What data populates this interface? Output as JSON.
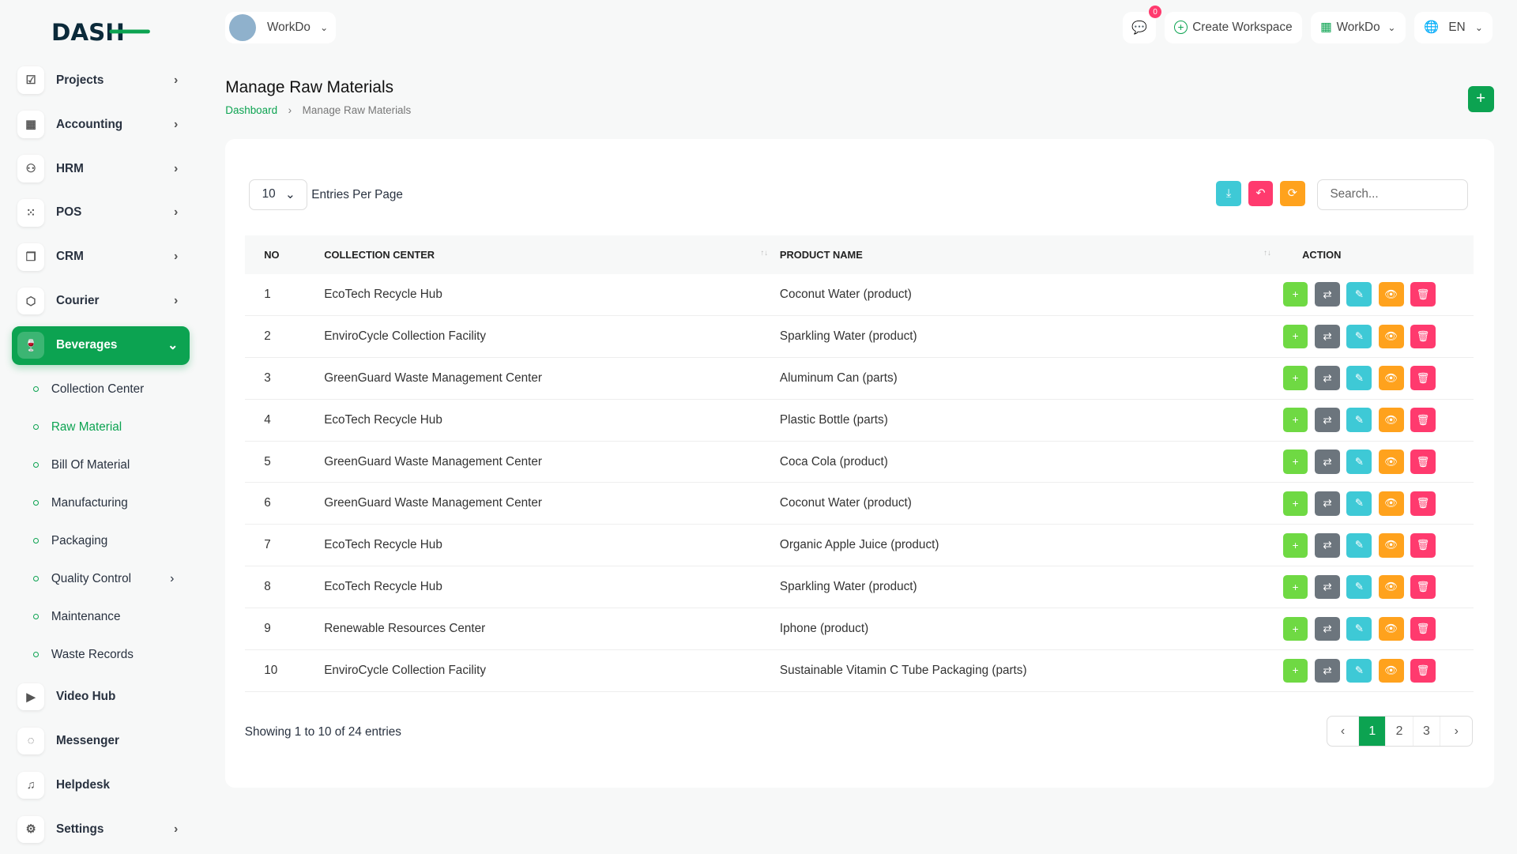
{
  "brand": {
    "logo_text": "DASH",
    "accent": "#0ca351"
  },
  "header": {
    "workspace": "WorkDo",
    "notifications": "0",
    "create_workspace": "Create Workspace",
    "workspace_menu": "WorkDo",
    "language": "EN"
  },
  "sidebar": {
    "items": [
      {
        "label": "Projects",
        "icon": "check-square-icon",
        "chev": true
      },
      {
        "label": "Accounting",
        "icon": "grid-icon",
        "chev": true
      },
      {
        "label": "HRM",
        "icon": "people-icon",
        "chev": true
      },
      {
        "label": "POS",
        "icon": "dots-grid-icon",
        "chev": true
      },
      {
        "label": "CRM",
        "icon": "layers-icon",
        "chev": true
      },
      {
        "label": "Courier",
        "icon": "box-icon",
        "chev": true
      },
      {
        "label": "Beverages",
        "icon": "cup-icon",
        "chev": true,
        "active": true
      }
    ],
    "sub": [
      {
        "label": "Collection Center"
      },
      {
        "label": "Raw Material",
        "active": true
      },
      {
        "label": "Bill Of Material"
      },
      {
        "label": "Manufacturing"
      },
      {
        "label": "Packaging"
      },
      {
        "label": "Quality Control",
        "chev": true
      },
      {
        "label": "Maintenance"
      },
      {
        "label": "Waste Records"
      }
    ],
    "bottom": [
      {
        "label": "Video Hub",
        "icon": "video-icon"
      },
      {
        "label": "Messenger",
        "icon": "chat-icon"
      },
      {
        "label": "Helpdesk",
        "icon": "headset-icon"
      },
      {
        "label": "Settings",
        "icon": "gear-icon",
        "chev": true
      }
    ]
  },
  "page": {
    "title": "Manage Raw Materials",
    "breadcrumb": [
      "Dashboard",
      "Manage Raw Materials"
    ]
  },
  "table": {
    "per_page": "10",
    "per_page_label": "Entries Per Page",
    "search_placeholder": "Search...",
    "columns": [
      "NO",
      "COLLECTION CENTER",
      "PRODUCT NAME",
      "ACTION"
    ],
    "rows": [
      [
        "1",
        "EcoTech Recycle Hub",
        "Coconut Water (product)"
      ],
      [
        "2",
        "EnviroCycle Collection Facility",
        "Sparkling Water (product)"
      ],
      [
        "3",
        "GreenGuard Waste Management Center",
        "Aluminum Can (parts)"
      ],
      [
        "4",
        "EcoTech Recycle Hub",
        "Plastic Bottle (parts)"
      ],
      [
        "5",
        "GreenGuard Waste Management Center",
        "Coca Cola (product)"
      ],
      [
        "6",
        "GreenGuard Waste Management Center",
        "Coconut Water (product)"
      ],
      [
        "7",
        "EcoTech Recycle Hub",
        "Organic Apple Juice (product)"
      ],
      [
        "8",
        "EcoTech Recycle Hub",
        "Sparkling Water (product)"
      ],
      [
        "9",
        "Renewable Resources Center",
        "Iphone (product)"
      ],
      [
        "10",
        "EnviroCycle Collection Facility",
        "Sustainable Vitamin C Tube Packaging (parts)"
      ]
    ],
    "showing": "Showing 1 to 10 of 24 entries",
    "pages": [
      "1",
      "2",
      "3"
    ],
    "current_page": "1"
  },
  "colors": {
    "green": "#0ca351",
    "add": "#6fd943",
    "swap": "#6c757d",
    "edit": "#3ec9d6",
    "view": "#ffa21d",
    "delete": "#ff3a6e"
  }
}
